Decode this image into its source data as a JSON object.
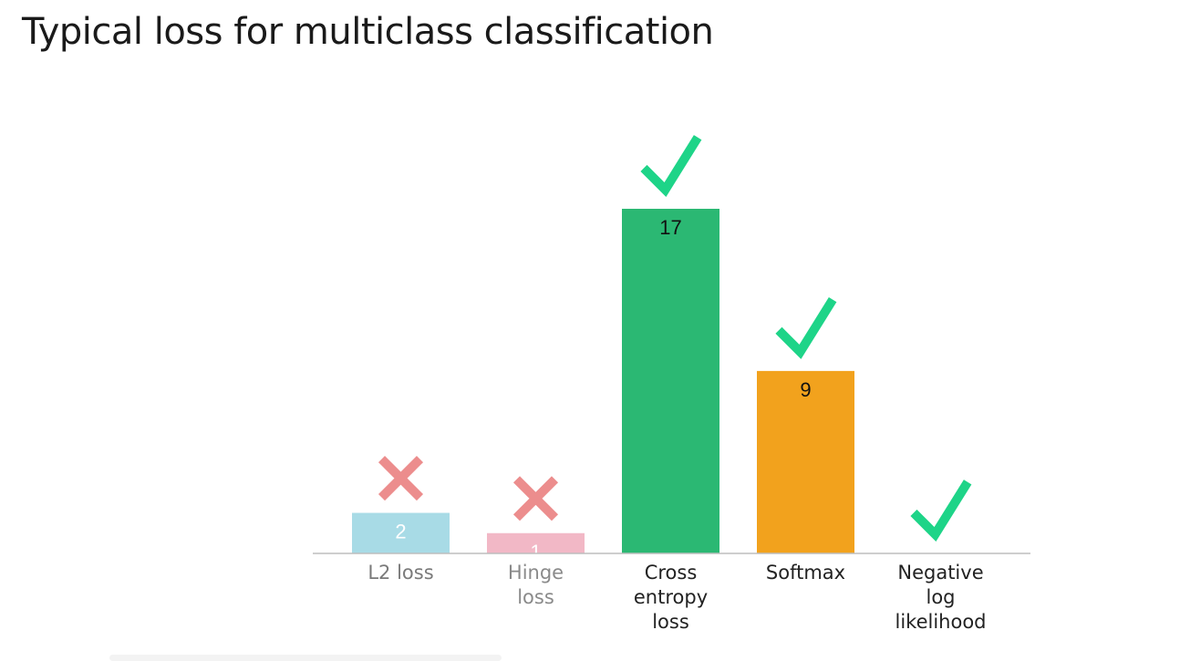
{
  "slide": {
    "title": "Typical loss for multiclass classification"
  },
  "chart_data": {
    "type": "bar",
    "title": "Typical loss for multiclass classification",
    "categories": [
      "L2 loss",
      "Hinge loss",
      "Cross entropy loss",
      "Softmax",
      "Negative log likelihood"
    ],
    "category_lines": [
      [
        "L2 loss"
      ],
      [
        "Hinge",
        "loss"
      ],
      [
        "Cross",
        "entropy",
        "loss"
      ],
      [
        "Softmax"
      ],
      [
        "Negative",
        "log",
        "likelihood"
      ]
    ],
    "values": [
      2,
      1,
      17,
      9,
      0
    ],
    "value_labels": [
      "2",
      "1",
      "17",
      "9",
      ""
    ],
    "bar_colors": [
      "#a8dbe6",
      "#f2b8c6",
      "#2bb873",
      "#f2a21d",
      "#2bb873"
    ],
    "label_colors": [
      "#7a7a7a",
      "#8a8a8a",
      "#222222",
      "#222222",
      "#222222"
    ],
    "value_label_colors": [
      "#ffffff",
      "#ffffff",
      "#111111",
      "#111111",
      "#111111"
    ],
    "marks": [
      "cross",
      "cross",
      "check",
      "check",
      "check"
    ],
    "mark_colors": {
      "cross": "#ec8d8d",
      "check": "#1ed488"
    },
    "ylim": [
      0,
      17
    ],
    "grid": false,
    "legend": "none",
    "xlabel": "",
    "ylabel": ""
  }
}
